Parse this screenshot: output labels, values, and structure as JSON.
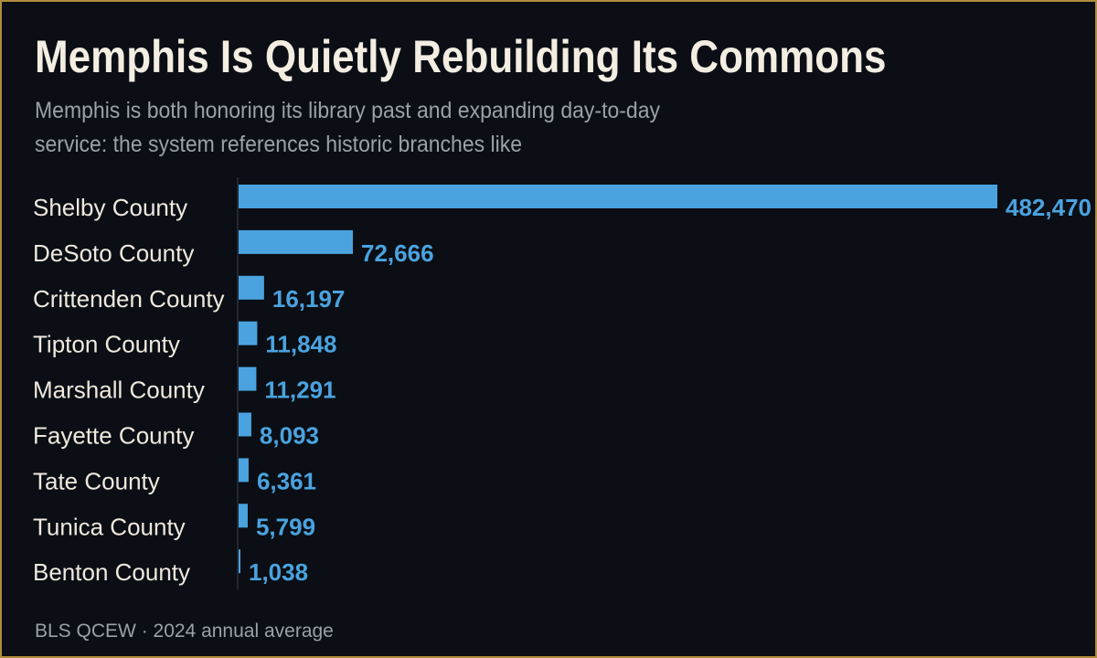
{
  "title": "Memphis Is Quietly Rebuilding Its Commons",
  "subtitle": "Memphis is both honoring its library past and expanding day-to-day service: the system references historic branches like",
  "source": "BLS QCEW · 2024 annual average",
  "colors": {
    "background": "#0b0e14",
    "border": "#b08d3c",
    "bar": "#4aa3df",
    "value_text": "#4aa3df",
    "category_text": "#efe9de",
    "axis": "#3a4350"
  },
  "chart_data": {
    "type": "bar",
    "orientation": "horizontal",
    "categories": [
      "Shelby County",
      "DeSoto County",
      "Crittenden County",
      "Tipton County",
      "Marshall County",
      "Fayette County",
      "Tate County",
      "Tunica County",
      "Benton County"
    ],
    "values": [
      482470,
      72666,
      16197,
      11848,
      11291,
      8093,
      6361,
      5799,
      1038
    ],
    "value_labels": [
      "482,470",
      "72,666",
      "16,197",
      "11,848",
      "11,291",
      "8,093",
      "6,361",
      "5,799",
      "1,038"
    ],
    "xlim": [
      0,
      482470
    ],
    "grid": false,
    "legend": "none"
  }
}
